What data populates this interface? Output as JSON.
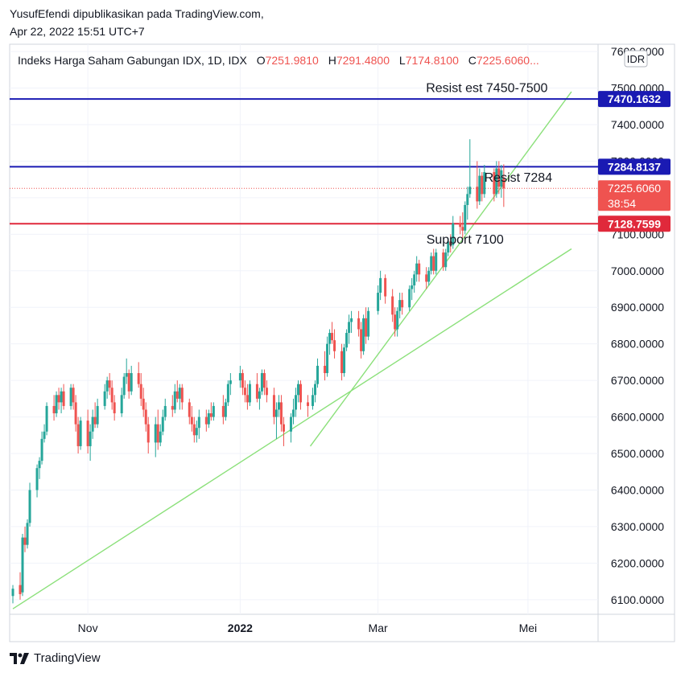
{
  "header": {
    "publisher_line": "YusufEfendi dipublikasikan pada TradingView.com,",
    "date_line": "Apr 22, 2022 15:51 UTC+7"
  },
  "legend": {
    "symbol": "Indeks Harga Saham Gabungan IDX, 1D, IDX",
    "o_label": "O",
    "o_value": "7251.9810",
    "h_label": "H",
    "h_value": "7291.4800",
    "l_label": "L",
    "l_value": "7174.8100",
    "c_label": "C",
    "c_value": "7225.6060...",
    "ohlc_color": "#ef5350"
  },
  "currency_badge": "IDR",
  "footer": {
    "logo_text": "TradingView"
  },
  "colors": {
    "up": "#26a69a",
    "down": "#ef5350",
    "resist_line": "#1a1ab3",
    "support_line": "#e0293b",
    "trend_line": "#8be07a",
    "grid": "#f0f3fa"
  },
  "chart_data": {
    "type": "candlestick",
    "y_axis": {
      "ticks": [
        6100,
        6200,
        6300,
        6400,
        6500,
        6600,
        6700,
        6800,
        6900,
        7000,
        7100,
        7200,
        7300,
        7400,
        7500,
        7600
      ],
      "tick_labels": [
        "6100.0000",
        "6200.0000",
        "6300.0000",
        "6400.0000",
        "6500.0000",
        "6600.0000",
        "6700.0000",
        "6800.0000",
        "6900.0000",
        "7000.0000",
        "7100.0000",
        "7200.0000",
        "7300.0000",
        "7400.0000",
        "7500.0000",
        "7600.0000"
      ],
      "ylim": [
        6060,
        7620
      ]
    },
    "x_axis": {
      "ticks": [
        {
          "label": "Nov",
          "date": "2021-11-01",
          "bold": false
        },
        {
          "label": "2022",
          "date": "2022-01-03",
          "bold": true
        },
        {
          "label": "Mar",
          "date": "2022-03-01",
          "bold": false
        },
        {
          "label": "Mei",
          "date": "2022-05-02",
          "bold": false
        }
      ],
      "xlim": [
        "2021-10-01",
        "2022-05-31"
      ]
    },
    "candles": [
      {
        "d": "2021-10-01",
        "o": 6110,
        "h": 6140,
        "l": 6090,
        "c": 6130
      },
      {
        "d": "2021-10-04",
        "o": 6140,
        "h": 6175,
        "l": 6100,
        "c": 6115
      },
      {
        "d": "2021-10-05",
        "o": 6120,
        "h": 6280,
        "l": 6110,
        "c": 6270
      },
      {
        "d": "2021-10-06",
        "o": 6270,
        "h": 6300,
        "l": 6230,
        "c": 6250
      },
      {
        "d": "2021-10-07",
        "o": 6250,
        "h": 6320,
        "l": 6240,
        "c": 6310
      },
      {
        "d": "2021-10-08",
        "o": 6310,
        "h": 6420,
        "l": 6300,
        "c": 6400
      },
      {
        "d": "2021-10-11",
        "o": 6400,
        "h": 6470,
        "l": 6380,
        "c": 6460
      },
      {
        "d": "2021-10-12",
        "o": 6460,
        "h": 6490,
        "l": 6430,
        "c": 6480
      },
      {
        "d": "2021-10-13",
        "o": 6480,
        "h": 6560,
        "l": 6470,
        "c": 6540
      },
      {
        "d": "2021-10-14",
        "o": 6540,
        "h": 6580,
        "l": 6530,
        "c": 6560
      },
      {
        "d": "2021-10-15",
        "o": 6560,
        "h": 6640,
        "l": 6550,
        "c": 6630
      },
      {
        "d": "2021-10-18",
        "o": 6630,
        "h": 6660,
        "l": 6590,
        "c": 6610
      },
      {
        "d": "2021-10-19",
        "o": 6610,
        "h": 6670,
        "l": 6600,
        "c": 6660
      },
      {
        "d": "2021-10-20",
        "o": 6660,
        "h": 6680,
        "l": 6620,
        "c": 6640
      },
      {
        "d": "2021-10-21",
        "o": 6640,
        "h": 6680,
        "l": 6610,
        "c": 6670
      },
      {
        "d": "2021-10-22",
        "o": 6670,
        "h": 6690,
        "l": 6620,
        "c": 6630
      },
      {
        "d": "2021-10-25",
        "o": 6630,
        "h": 6690,
        "l": 6620,
        "c": 6680
      },
      {
        "d": "2021-10-26",
        "o": 6680,
        "h": 6690,
        "l": 6620,
        "c": 6640
      },
      {
        "d": "2021-10-27",
        "o": 6640,
        "h": 6660,
        "l": 6560,
        "c": 6580
      },
      {
        "d": "2021-10-28",
        "o": 6580,
        "h": 6600,
        "l": 6500,
        "c": 6520
      },
      {
        "d": "2021-10-29",
        "o": 6520,
        "h": 6600,
        "l": 6510,
        "c": 6590
      },
      {
        "d": "2021-11-01",
        "o": 6590,
        "h": 6620,
        "l": 6500,
        "c": 6520
      },
      {
        "d": "2021-11-02",
        "o": 6520,
        "h": 6580,
        "l": 6480,
        "c": 6560
      },
      {
        "d": "2021-11-03",
        "o": 6560,
        "h": 6620,
        "l": 6540,
        "c": 6600
      },
      {
        "d": "2021-11-04",
        "o": 6600,
        "h": 6640,
        "l": 6570,
        "c": 6580
      },
      {
        "d": "2021-11-05",
        "o": 6580,
        "h": 6650,
        "l": 6570,
        "c": 6630
      },
      {
        "d": "2021-11-08",
        "o": 6630,
        "h": 6690,
        "l": 6620,
        "c": 6670
      },
      {
        "d": "2021-11-09",
        "o": 6670,
        "h": 6710,
        "l": 6650,
        "c": 6700
      },
      {
        "d": "2021-11-10",
        "o": 6700,
        "h": 6720,
        "l": 6660,
        "c": 6680
      },
      {
        "d": "2021-11-11",
        "o": 6680,
        "h": 6700,
        "l": 6620,
        "c": 6640
      },
      {
        "d": "2021-11-12",
        "o": 6640,
        "h": 6660,
        "l": 6590,
        "c": 6610
      },
      {
        "d": "2021-11-15",
        "o": 6610,
        "h": 6680,
        "l": 6600,
        "c": 6660
      },
      {
        "d": "2021-11-16",
        "o": 6660,
        "h": 6720,
        "l": 6650,
        "c": 6710
      },
      {
        "d": "2021-11-17",
        "o": 6710,
        "h": 6760,
        "l": 6690,
        "c": 6720
      },
      {
        "d": "2021-11-18",
        "o": 6720,
        "h": 6730,
        "l": 6650,
        "c": 6670
      },
      {
        "d": "2021-11-19",
        "o": 6670,
        "h": 6740,
        "l": 6660,
        "c": 6720
      },
      {
        "d": "2021-11-22",
        "o": 6720,
        "h": 6750,
        "l": 6680,
        "c": 6690
      },
      {
        "d": "2021-11-23",
        "o": 6690,
        "h": 6720,
        "l": 6630,
        "c": 6650
      },
      {
        "d": "2021-11-24",
        "o": 6650,
        "h": 6680,
        "l": 6600,
        "c": 6620
      },
      {
        "d": "2021-11-25",
        "o": 6620,
        "h": 6640,
        "l": 6560,
        "c": 6580
      },
      {
        "d": "2021-11-26",
        "o": 6580,
        "h": 6600,
        "l": 6500,
        "c": 6530
      },
      {
        "d": "2021-11-29",
        "o": 6530,
        "h": 6600,
        "l": 6490,
        "c": 6580
      },
      {
        "d": "2021-11-30",
        "o": 6580,
        "h": 6620,
        "l": 6510,
        "c": 6530
      },
      {
        "d": "2021-12-01",
        "o": 6530,
        "h": 6580,
        "l": 6520,
        "c": 6560
      },
      {
        "d": "2021-12-02",
        "o": 6560,
        "h": 6620,
        "l": 6550,
        "c": 6600
      },
      {
        "d": "2021-12-03",
        "o": 6600,
        "h": 6650,
        "l": 6590,
        "c": 6630
      },
      {
        "d": "2021-12-06",
        "o": 6630,
        "h": 6660,
        "l": 6600,
        "c": 6620
      },
      {
        "d": "2021-12-07",
        "o": 6620,
        "h": 6690,
        "l": 6610,
        "c": 6670
      },
      {
        "d": "2021-12-08",
        "o": 6670,
        "h": 6700,
        "l": 6640,
        "c": 6650
      },
      {
        "d": "2021-12-09",
        "o": 6650,
        "h": 6690,
        "l": 6620,
        "c": 6680
      },
      {
        "d": "2021-12-10",
        "o": 6680,
        "h": 6690,
        "l": 6620,
        "c": 6640
      },
      {
        "d": "2021-12-13",
        "o": 6640,
        "h": 6650,
        "l": 6580,
        "c": 6600
      },
      {
        "d": "2021-12-14",
        "o": 6600,
        "h": 6630,
        "l": 6560,
        "c": 6580
      },
      {
        "d": "2021-12-15",
        "o": 6580,
        "h": 6600,
        "l": 6530,
        "c": 6550
      },
      {
        "d": "2021-12-16",
        "o": 6550,
        "h": 6590,
        "l": 6530,
        "c": 6570
      },
      {
        "d": "2021-12-17",
        "o": 6570,
        "h": 6620,
        "l": 6540,
        "c": 6600
      },
      {
        "d": "2021-12-20",
        "o": 6600,
        "h": 6620,
        "l": 6560,
        "c": 6580
      },
      {
        "d": "2021-12-21",
        "o": 6580,
        "h": 6620,
        "l": 6570,
        "c": 6610
      },
      {
        "d": "2021-12-22",
        "o": 6610,
        "h": 6640,
        "l": 6590,
        "c": 6600
      },
      {
        "d": "2021-12-23",
        "o": 6600,
        "h": 6640,
        "l": 6590,
        "c": 6630
      },
      {
        "d": "2021-12-27",
        "o": 6630,
        "h": 6660,
        "l": 6580,
        "c": 6600
      },
      {
        "d": "2021-12-28",
        "o": 6600,
        "h": 6650,
        "l": 6590,
        "c": 6640
      },
      {
        "d": "2021-12-29",
        "o": 6640,
        "h": 6700,
        "l": 6630,
        "c": 6690
      },
      {
        "d": "2021-12-30",
        "o": 6690,
        "h": 6720,
        "l": 6660,
        "c": 6700
      },
      {
        "d": "2022-01-03",
        "o": 6700,
        "h": 6740,
        "l": 6680,
        "c": 6720
      },
      {
        "d": "2022-01-04",
        "o": 6720,
        "h": 6730,
        "l": 6660,
        "c": 6680
      },
      {
        "d": "2022-01-05",
        "o": 6680,
        "h": 6700,
        "l": 6640,
        "c": 6660
      },
      {
        "d": "2022-01-06",
        "o": 6660,
        "h": 6690,
        "l": 6620,
        "c": 6640
      },
      {
        "d": "2022-01-07",
        "o": 6640,
        "h": 6700,
        "l": 6630,
        "c": 6690
      },
      {
        "d": "2022-01-10",
        "o": 6690,
        "h": 6720,
        "l": 6640,
        "c": 6650
      },
      {
        "d": "2022-01-11",
        "o": 6650,
        "h": 6680,
        "l": 6620,
        "c": 6670
      },
      {
        "d": "2022-01-12",
        "o": 6670,
        "h": 6730,
        "l": 6660,
        "c": 6720
      },
      {
        "d": "2022-01-13",
        "o": 6720,
        "h": 6730,
        "l": 6660,
        "c": 6680
      },
      {
        "d": "2022-01-14",
        "o": 6680,
        "h": 6700,
        "l": 6640,
        "c": 6660
      },
      {
        "d": "2022-01-17",
        "o": 6660,
        "h": 6680,
        "l": 6580,
        "c": 6600
      },
      {
        "d": "2022-01-18",
        "o": 6600,
        "h": 6640,
        "l": 6540,
        "c": 6620
      },
      {
        "d": "2022-01-19",
        "o": 6620,
        "h": 6660,
        "l": 6600,
        "c": 6640
      },
      {
        "d": "2022-01-20",
        "o": 6640,
        "h": 6660,
        "l": 6560,
        "c": 6580
      },
      {
        "d": "2022-01-21",
        "o": 6580,
        "h": 6600,
        "l": 6520,
        "c": 6560
      },
      {
        "d": "2022-01-24",
        "o": 6560,
        "h": 6610,
        "l": 6530,
        "c": 6600
      },
      {
        "d": "2022-01-25",
        "o": 6600,
        "h": 6650,
        "l": 6580,
        "c": 6620
      },
      {
        "d": "2022-01-26",
        "o": 6620,
        "h": 6680,
        "l": 6600,
        "c": 6660
      },
      {
        "d": "2022-01-27",
        "o": 6660,
        "h": 6700,
        "l": 6640,
        "c": 6690
      },
      {
        "d": "2022-01-28",
        "o": 6690,
        "h": 6700,
        "l": 6620,
        "c": 6640
      },
      {
        "d": "2022-01-31",
        "o": 6640,
        "h": 6660,
        "l": 6600,
        "c": 6630
      },
      {
        "d": "2022-02-02",
        "o": 6630,
        "h": 6680,
        "l": 6620,
        "c": 6660
      },
      {
        "d": "2022-02-03",
        "o": 6660,
        "h": 6700,
        "l": 6640,
        "c": 6690
      },
      {
        "d": "2022-02-04",
        "o": 6690,
        "h": 6760,
        "l": 6680,
        "c": 6740
      },
      {
        "d": "2022-02-07",
        "o": 6740,
        "h": 6780,
        "l": 6700,
        "c": 6720
      },
      {
        "d": "2022-02-08",
        "o": 6720,
        "h": 6820,
        "l": 6710,
        "c": 6800
      },
      {
        "d": "2022-02-09",
        "o": 6800,
        "h": 6840,
        "l": 6770,
        "c": 6830
      },
      {
        "d": "2022-02-10",
        "o": 6830,
        "h": 6860,
        "l": 6800,
        "c": 6810
      },
      {
        "d": "2022-02-11",
        "o": 6810,
        "h": 6840,
        "l": 6760,
        "c": 6780
      },
      {
        "d": "2022-02-14",
        "o": 6780,
        "h": 6800,
        "l": 6700,
        "c": 6720
      },
      {
        "d": "2022-02-15",
        "o": 6720,
        "h": 6800,
        "l": 6710,
        "c": 6790
      },
      {
        "d": "2022-02-16",
        "o": 6790,
        "h": 6840,
        "l": 6780,
        "c": 6830
      },
      {
        "d": "2022-02-17",
        "o": 6830,
        "h": 6880,
        "l": 6800,
        "c": 6860
      },
      {
        "d": "2022-02-18",
        "o": 6860,
        "h": 6890,
        "l": 6830,
        "c": 6870
      },
      {
        "d": "2022-02-21",
        "o": 6870,
        "h": 6890,
        "l": 6820,
        "c": 6840
      },
      {
        "d": "2022-02-22",
        "o": 6840,
        "h": 6860,
        "l": 6760,
        "c": 6780
      },
      {
        "d": "2022-02-23",
        "o": 6780,
        "h": 6880,
        "l": 6770,
        "c": 6870
      },
      {
        "d": "2022-02-24",
        "o": 6870,
        "h": 6900,
        "l": 6800,
        "c": 6820
      },
      {
        "d": "2022-02-25",
        "o": 6820,
        "h": 6900,
        "l": 6810,
        "c": 6890
      },
      {
        "d": "2022-03-01",
        "o": 6890,
        "h": 6960,
        "l": 6880,
        "c": 6940
      },
      {
        "d": "2022-03-02",
        "o": 6940,
        "h": 7000,
        "l": 6920,
        "c": 6980
      },
      {
        "d": "2022-03-04",
        "o": 6980,
        "h": 6990,
        "l": 6910,
        "c": 6930
      },
      {
        "d": "2022-03-07",
        "o": 6930,
        "h": 6950,
        "l": 6860,
        "c": 6880
      },
      {
        "d": "2022-03-08",
        "o": 6880,
        "h": 6900,
        "l": 6820,
        "c": 6840
      },
      {
        "d": "2022-03-09",
        "o": 6840,
        "h": 6900,
        "l": 6820,
        "c": 6890
      },
      {
        "d": "2022-03-10",
        "o": 6890,
        "h": 6940,
        "l": 6870,
        "c": 6920
      },
      {
        "d": "2022-03-11",
        "o": 6920,
        "h": 6940,
        "l": 6880,
        "c": 6900
      },
      {
        "d": "2022-03-14",
        "o": 6900,
        "h": 6960,
        "l": 6890,
        "c": 6950
      },
      {
        "d": "2022-03-15",
        "o": 6950,
        "h": 6980,
        "l": 6920,
        "c": 6960
      },
      {
        "d": "2022-03-16",
        "o": 6960,
        "h": 7000,
        "l": 6940,
        "c": 6990
      },
      {
        "d": "2022-03-17",
        "o": 6990,
        "h": 7040,
        "l": 6970,
        "c": 7020
      },
      {
        "d": "2022-03-18",
        "o": 7020,
        "h": 7030,
        "l": 6970,
        "c": 6990
      },
      {
        "d": "2022-03-21",
        "o": 6990,
        "h": 7010,
        "l": 6950,
        "c": 6970
      },
      {
        "d": "2022-03-22",
        "o": 6970,
        "h": 7010,
        "l": 6960,
        "c": 7000
      },
      {
        "d": "2022-03-23",
        "o": 7000,
        "h": 7050,
        "l": 6990,
        "c": 7040
      },
      {
        "d": "2022-03-24",
        "o": 7040,
        "h": 7060,
        "l": 6990,
        "c": 7000
      },
      {
        "d": "2022-03-25",
        "o": 7000,
        "h": 7060,
        "l": 6990,
        "c": 7050
      },
      {
        "d": "2022-03-28",
        "o": 7050,
        "h": 7060,
        "l": 7000,
        "c": 7010
      },
      {
        "d": "2022-03-29",
        "o": 7010,
        "h": 7060,
        "l": 7000,
        "c": 7050
      },
      {
        "d": "2022-03-30",
        "o": 7050,
        "h": 7090,
        "l": 7040,
        "c": 7080
      },
      {
        "d": "2022-03-31",
        "o": 7080,
        "h": 7100,
        "l": 7050,
        "c": 7070
      },
      {
        "d": "2022-04-01",
        "o": 7070,
        "h": 7150,
        "l": 7060,
        "c": 7130
      },
      {
        "d": "2022-04-04",
        "o": 7130,
        "h": 7150,
        "l": 7100,
        "c": 7120
      },
      {
        "d": "2022-04-05",
        "o": 7120,
        "h": 7160,
        "l": 7090,
        "c": 7110
      },
      {
        "d": "2022-04-06",
        "o": 7110,
        "h": 7190,
        "l": 7100,
        "c": 7180
      },
      {
        "d": "2022-04-07",
        "o": 7180,
        "h": 7230,
        "l": 7140,
        "c": 7210
      },
      {
        "d": "2022-04-08",
        "o": 7210,
        "h": 7360,
        "l": 7200,
        "c": 7230
      },
      {
        "d": "2022-04-11",
        "o": 7230,
        "h": 7300,
        "l": 7170,
        "c": 7190
      },
      {
        "d": "2022-04-12",
        "o": 7190,
        "h": 7280,
        "l": 7180,
        "c": 7260
      },
      {
        "d": "2022-04-13",
        "o": 7260,
        "h": 7270,
        "l": 7190,
        "c": 7210
      },
      {
        "d": "2022-04-14",
        "o": 7210,
        "h": 7290,
        "l": 7200,
        "c": 7270
      },
      {
        "d": "2022-04-18",
        "o": 7270,
        "h": 7280,
        "l": 7190,
        "c": 7210
      },
      {
        "d": "2022-04-19",
        "o": 7210,
        "h": 7300,
        "l": 7200,
        "c": 7280
      },
      {
        "d": "2022-04-20",
        "o": 7280,
        "h": 7300,
        "l": 7210,
        "c": 7230
      },
      {
        "d": "2022-04-21",
        "o": 7230,
        "h": 7290,
        "l": 7200,
        "c": 7275
      },
      {
        "d": "2022-04-22",
        "o": 7251.981,
        "h": 7291.48,
        "l": 7174.81,
        "c": 7225.606
      }
    ],
    "horizontal_lines": [
      {
        "name": "resist-est",
        "value": 7470.1632,
        "label": "7470.1632",
        "color": "#1a1ab3"
      },
      {
        "name": "resist",
        "value": 7284.8137,
        "label": "7284.8137",
        "color": "#1a1ab3"
      },
      {
        "name": "support",
        "value": 7128.7599,
        "label": "7128.7599",
        "color": "#e0293b"
      }
    ],
    "last_price": {
      "value": 7225.606,
      "label": "7225.6060",
      "countdown": "38:54"
    },
    "trendlines": [
      {
        "from": {
          "d": "2021-10-01",
          "v": 6075
        },
        "to": {
          "d": "2022-05-20",
          "v": 7060
        }
      },
      {
        "from": {
          "d": "2022-02-01",
          "v": 6520
        },
        "to": {
          "d": "2022-05-20",
          "v": 7490
        }
      }
    ],
    "annotations": [
      {
        "text": "Resist est 7450-7500",
        "d": "2022-04-15",
        "v": 7500
      },
      {
        "text": "Resist 7284",
        "d": "2022-04-28",
        "v": 7255
      },
      {
        "text": "Support 7100",
        "d": "2022-04-06",
        "v": 7085
      }
    ]
  }
}
